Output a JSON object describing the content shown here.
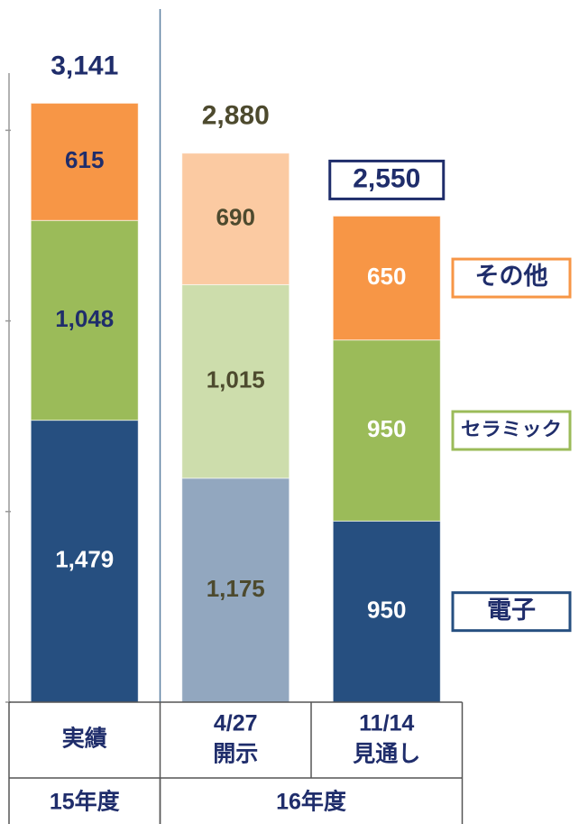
{
  "chart_data": {
    "type": "stacked_bar",
    "categories": [
      [
        "実績"
      ],
      [
        "4/27",
        "開示"
      ],
      [
        "11/14",
        "見通し"
      ]
    ],
    "groups": [
      {
        "label": "15年度",
        "span": 1
      },
      {
        "label": "16年度",
        "span": 2
      }
    ],
    "series": [
      {
        "name": "電子",
        "color": "#264f80",
        "values": [
          1479,
          1175,
          950
        ],
        "value_labels": [
          "1,479",
          "1,175",
          "950"
        ]
      },
      {
        "name": "セラミック",
        "color": "#9bbb59",
        "values": [
          1048,
          1015,
          950
        ],
        "value_labels": [
          "1,048",
          "1,015",
          "950"
        ]
      },
      {
        "name": "その他",
        "color": "#f79646",
        "values": [
          615,
          690,
          650
        ],
        "value_labels": [
          "615",
          "690",
          "650"
        ]
      }
    ],
    "totals": [
      3141,
      2880,
      2550
    ],
    "total_labels": [
      "3,141",
      "2,880",
      "2,550"
    ],
    "total_colors": [
      "#1f2d6b",
      "#4d4a2e",
      "#1f2d6b"
    ],
    "total_boxed": [
      false,
      false,
      true
    ],
    "opacity": [
      1,
      0.5,
      1
    ],
    "label_colors": [
      [
        "#ffffff",
        "#1f2d6b",
        "#1f2d6b"
      ],
      [
        "#4d4a2e",
        "#4d4a2e",
        "#4d4a2e"
      ],
      [
        "#ffffff",
        "#ffffff",
        "#ffffff"
      ]
    ],
    "legend_text_color": "#1f2d6b",
    "ylim": [
      0,
      3300
    ],
    "yticks": [
      0,
      1000,
      2000,
      3000
    ]
  }
}
